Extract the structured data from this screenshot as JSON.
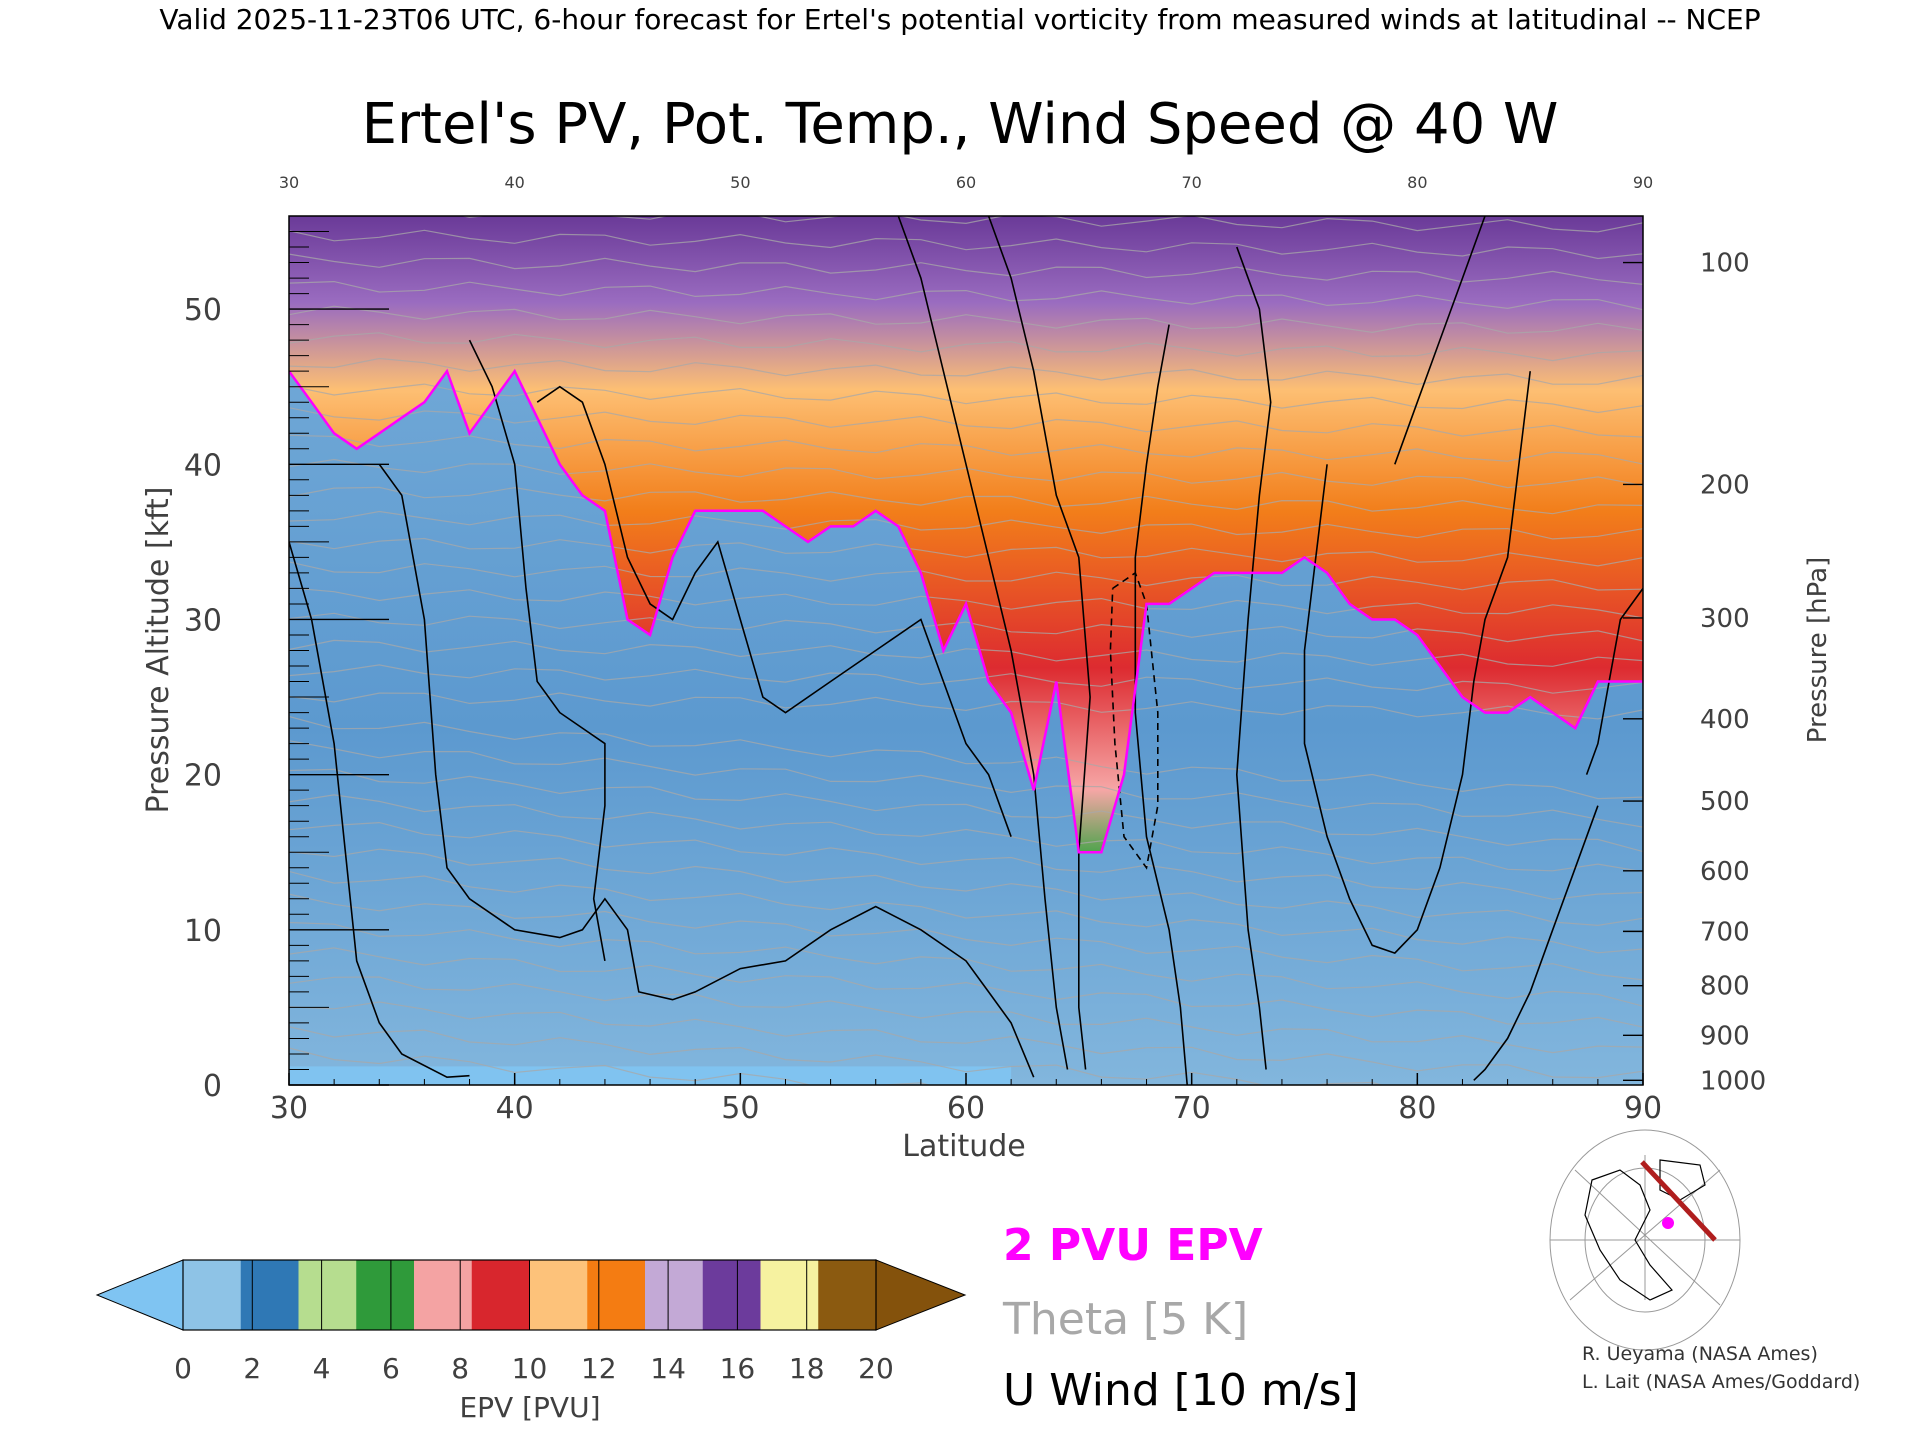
{
  "header": {
    "valid_line": "Valid 2025-11-23T06 UTC, 6-hour forecast for Ertel's potential vorticity from measured winds at latitudinal -- NCEP"
  },
  "chart_data": {
    "type": "heatmap",
    "title": "Ertel's PV, Pot. Temp., Wind Speed @ 40 W",
    "xlabel": "Latitude",
    "ylabel_left": "Pressure Altitude [kft]",
    "ylabel_right": "Pressure [hPa]",
    "xlim": [
      30,
      90
    ],
    "ylim_kft": [
      0,
      56
    ],
    "x_ticks": [
      30,
      40,
      50,
      60,
      70,
      80,
      90
    ],
    "x_ticks_top": [
      30,
      40,
      50,
      60,
      70,
      80,
      90
    ],
    "y_ticks_kft": [
      0,
      10,
      20,
      30,
      40,
      50
    ],
    "pressure_ticks": [
      {
        "hPa": 100,
        "kft": 53.0
      },
      {
        "hPa": 200,
        "kft": 38.7
      },
      {
        "hPa": 300,
        "kft": 30.1
      },
      {
        "hPa": 400,
        "kft": 23.6
      },
      {
        "hPa": 500,
        "kft": 18.3
      },
      {
        "hPa": 600,
        "kft": 13.8
      },
      {
        "hPa": 700,
        "kft": 9.9
      },
      {
        "hPa": 800,
        "kft": 6.4
      },
      {
        "hPa": 900,
        "kft": 3.2
      },
      {
        "hPa": 1000,
        "kft": 0.3
      }
    ],
    "grid": false,
    "pv2_boundary": {
      "lat": [
        30,
        31,
        32,
        33,
        34,
        35,
        36,
        37,
        38,
        39,
        40,
        41,
        42,
        43,
        44,
        45,
        46,
        47,
        48,
        49,
        50,
        51,
        52,
        53,
        54,
        55,
        56,
        57,
        58,
        59,
        60,
        61,
        62,
        63,
        64,
        65,
        66,
        67,
        68,
        69,
        70,
        71,
        72,
        73,
        74,
        75,
        76,
        77,
        78,
        79,
        80,
        81,
        82,
        83,
        84,
        85,
        86,
        87,
        88,
        89,
        90
      ],
      "kft": [
        46,
        44,
        42,
        41,
        42,
        43,
        44,
        46,
        42,
        44,
        46,
        43,
        40,
        38,
        37,
        30,
        29,
        34,
        37,
        37,
        37,
        37,
        36,
        35,
        36,
        36,
        37,
        36,
        33,
        28,
        31,
        26,
        24,
        19,
        26,
        15,
        15,
        20,
        31,
        31,
        32,
        33,
        33,
        33,
        33,
        34,
        33,
        31,
        30,
        30,
        29,
        27,
        25,
        24,
        24,
        25,
        24,
        23,
        26,
        26,
        26
      ]
    },
    "color_scale": {
      "label": "EPV [PVU]",
      "ticks": [
        0,
        2,
        4,
        6,
        8,
        10,
        12,
        14,
        16,
        18,
        20
      ],
      "colors": [
        "#8ec3e6",
        "#2f78b5",
        "#b6dd8f",
        "#2f9a3a",
        "#f4a3a3",
        "#d8262d",
        "#fdc27a",
        "#f47c12",
        "#c3a9d6",
        "#6c3b9c",
        "#f6f2a0",
        "#8b5a10"
      ],
      "under_color": "#7fc4f2",
      "over_color": "#84520c"
    },
    "legend": [
      {
        "label": "2 PVU EPV",
        "color": "#ff00ff"
      },
      {
        "label": "Theta [5 K]",
        "color": "#a8a8a8"
      },
      {
        "label": "U Wind [10 m/s]",
        "color": "#000000"
      }
    ]
  },
  "credits": {
    "line1": "R. Ueyama (NASA Ames)",
    "line2": "L. Lait (NASA Ames/Goddard)"
  }
}
